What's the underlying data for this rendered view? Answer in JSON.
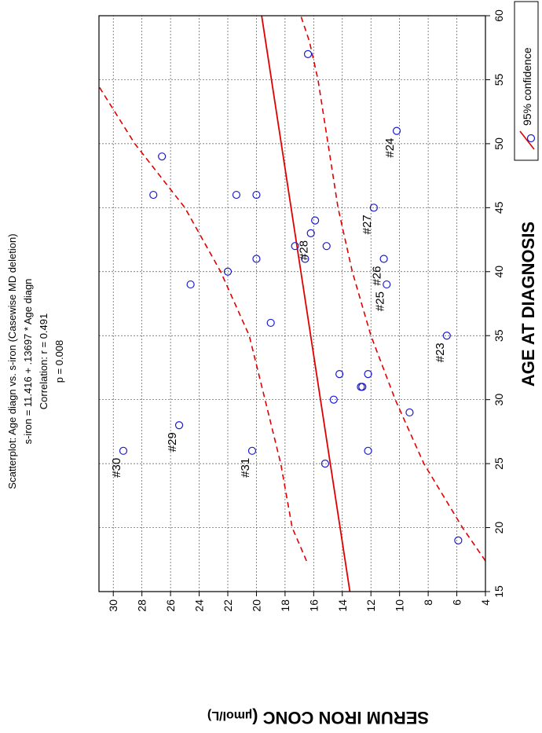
{
  "chart_data": {
    "type": "scatter",
    "title_lines": [
      "Scatterplot: Age diagn vs. s-iron (Casewise MD deletion)",
      "s-iron = 11.416 + .13697 * Age diagn",
      "Correlation: r = 0.491",
      "p = 0.008"
    ],
    "xlabel": "AGE AT DIAGNOSIS",
    "ylabel_main": "SERUM IRON CONC (",
    "ylabel_unit": "µmol/L)",
    "xlim": [
      15,
      60
    ],
    "ylim": [
      4,
      31
    ],
    "xticks": [
      "15",
      "20",
      "25",
      "30",
      "35",
      "40",
      "45",
      "50",
      "55",
      "60"
    ],
    "yticks": [
      "4",
      "6",
      "8",
      "10",
      "12",
      "14",
      "16",
      "18",
      "20",
      "22",
      "24",
      "26",
      "28",
      "30"
    ],
    "legend": {
      "label": "95% confidence",
      "placement": "bottom-right"
    },
    "colors": {
      "points": "#1a1ad0",
      "fit": "#e00000",
      "grid": "#555555"
    },
    "regression": {
      "intercept": 11.416,
      "slope": 0.13697
    },
    "confidence_band": {
      "upper": [
        [
          17.4,
          16.5
        ],
        [
          20,
          17.5
        ],
        [
          25,
          18.3
        ],
        [
          30,
          19.4
        ],
        [
          35,
          20.5
        ],
        [
          40,
          22.5
        ],
        [
          45,
          25.0
        ],
        [
          50,
          28.5
        ],
        [
          55,
          31.3
        ],
        [
          58,
          33.0
        ],
        [
          60,
          34.1
        ]
      ],
      "lower": [
        [
          17.4,
          4.0
        ],
        [
          20,
          5.6
        ],
        [
          25,
          8.3
        ],
        [
          30,
          10.3
        ],
        [
          35,
          12.0
        ],
        [
          40,
          13.3
        ],
        [
          45,
          14.3
        ],
        [
          50,
          15.0
        ],
        [
          55,
          15.7
        ],
        [
          58,
          16.3
        ],
        [
          60,
          16.9
        ]
      ]
    },
    "points": [
      {
        "x": 19,
        "y": 5.9,
        "label": ""
      },
      {
        "x": 25,
        "y": 15.2,
        "label": ""
      },
      {
        "x": 26,
        "y": 29.3,
        "label": "#30"
      },
      {
        "x": 26,
        "y": 20.3,
        "label": "#31"
      },
      {
        "x": 26,
        "y": 12.2,
        "label": ""
      },
      {
        "x": 28,
        "y": 25.4,
        "label": "#29"
      },
      {
        "x": 29,
        "y": 9.3,
        "label": ""
      },
      {
        "x": 30,
        "y": 14.6,
        "label": ""
      },
      {
        "x": 31,
        "y": 12.6,
        "label": ""
      },
      {
        "x": 31,
        "y": 12.7,
        "label": ""
      },
      {
        "x": 32,
        "y": 12.2,
        "label": ""
      },
      {
        "x": 32,
        "y": 14.2,
        "label": ""
      },
      {
        "x": 35,
        "y": 6.7,
        "label": "#23"
      },
      {
        "x": 36,
        "y": 19.0,
        "label": ""
      },
      {
        "x": 39,
        "y": 24.6,
        "label": ""
      },
      {
        "x": 39,
        "y": 10.9,
        "label": "#25"
      },
      {
        "x": 40,
        "y": 22.0,
        "label": ""
      },
      {
        "x": 41,
        "y": 20.0,
        "label": ""
      },
      {
        "x": 41,
        "y": 16.6,
        "label": ""
      },
      {
        "x": 41,
        "y": 11.1,
        "label": "#26"
      },
      {
        "x": 42,
        "y": 17.3,
        "label": ""
      },
      {
        "x": 42,
        "y": 15.1,
        "label": ""
      },
      {
        "x": 43,
        "y": 16.2,
        "label": "#28"
      },
      {
        "x": 44,
        "y": 15.9,
        "label": ""
      },
      {
        "x": 45,
        "y": 11.8,
        "label": "#27"
      },
      {
        "x": 46,
        "y": 27.2,
        "label": ""
      },
      {
        "x": 46,
        "y": 21.4,
        "label": ""
      },
      {
        "x": 46,
        "y": 20.0,
        "label": ""
      },
      {
        "x": 49,
        "y": 26.6,
        "label": ""
      },
      {
        "x": 51,
        "y": 10.2,
        "label": "#24"
      },
      {
        "x": 57,
        "y": 16.4,
        "label": ""
      }
    ]
  }
}
